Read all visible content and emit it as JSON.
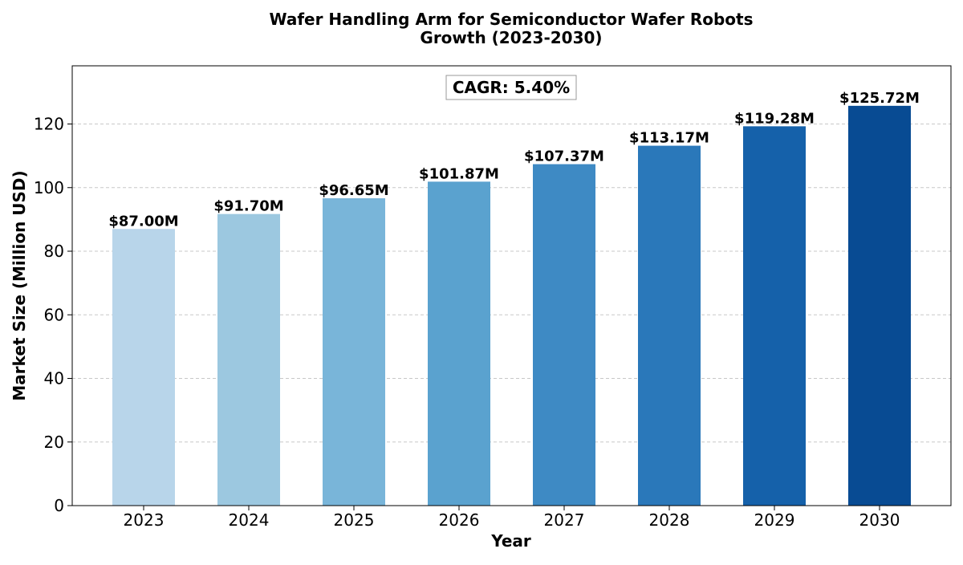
{
  "chart_data": {
    "type": "bar",
    "title_line1": "Wafer Handling Arm for Semiconductor Wafer Robots",
    "title_line2": "Growth (2023-2030)",
    "xlabel": "Year",
    "ylabel": "Market Size (Million USD)",
    "categories": [
      "2023",
      "2024",
      "2025",
      "2026",
      "2027",
      "2028",
      "2029",
      "2030"
    ],
    "values": [
      87.0,
      91.7,
      96.65,
      101.87,
      107.37,
      113.17,
      119.28,
      125.72
    ],
    "value_labels": [
      "$87.00M",
      "$91.70M",
      "$96.65M",
      "$101.87M",
      "$107.37M",
      "$113.17M",
      "$119.28M",
      "$125.72M"
    ],
    "bar_colors": [
      "#b8d5ea",
      "#9cc8e0",
      "#79b5d9",
      "#5aa2cf",
      "#3e8ac4",
      "#2a78ba",
      "#1561aa",
      "#084b93"
    ],
    "ylim": [
      0,
      138.3
    ],
    "yticks": [
      0,
      20,
      40,
      60,
      80,
      100,
      120
    ],
    "grid": true,
    "annotation": "CAGR: 5.40%"
  }
}
